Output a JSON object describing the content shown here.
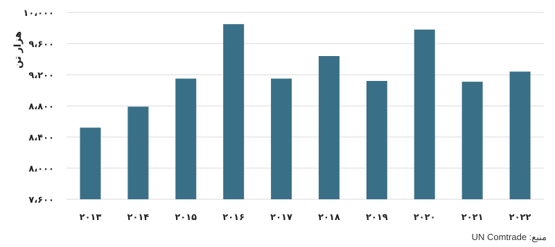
{
  "chart_data": {
    "type": "bar",
    "categories": [
      "۲۰۱۳",
      "۲۰۱۴",
      "۲۰۱۵",
      "۲۰۱۶",
      "۲۰۱۷",
      "۲۰۱۸",
      "۲۰۱۹",
      "۲۰۲۰",
      "۲۰۲۱",
      "۲۰۲۲"
    ],
    "values": [
      8520,
      8790,
      9150,
      9850,
      9150,
      9440,
      9120,
      9780,
      9110,
      9240
    ],
    "ylabel": "هزار تن",
    "ylim": [
      7600,
      10000
    ],
    "yticks": [
      7600,
      8000,
      8400,
      8800,
      9200,
      9600,
      10000
    ],
    "ytick_labels": [
      "۷،۶۰۰",
      "۸،۰۰۰",
      "۸،۴۰۰",
      "۸،۸۰۰",
      "۹،۲۰۰",
      "۹،۶۰۰",
      "۱۰،۰۰۰"
    ],
    "bar_color": "#3a6f88",
    "grid": true,
    "grid_color": "#d9d9d9"
  },
  "source_text": "منبع: UN Comtrade"
}
